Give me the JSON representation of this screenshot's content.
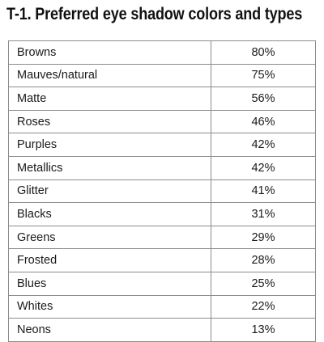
{
  "title": "T-1. Preferred eye shadow colors and types",
  "chart_data": {
    "type": "table",
    "title": "T-1. Preferred eye shadow colors and types",
    "rows": [
      {
        "label": "Browns",
        "value": "80%"
      },
      {
        "label": "Mauves/natural",
        "value": "75%"
      },
      {
        "label": "Matte",
        "value": "56%"
      },
      {
        "label": "Roses",
        "value": "46%"
      },
      {
        "label": "Purples",
        "value": "42%"
      },
      {
        "label": "Metallics",
        "value": "42%"
      },
      {
        "label": "Glitter",
        "value": "41%"
      },
      {
        "label": "Blacks",
        "value": "31%"
      },
      {
        "label": "Greens",
        "value": "29%"
      },
      {
        "label": "Frosted",
        "value": "28%"
      },
      {
        "label": "Blues",
        "value": "25%"
      },
      {
        "label": "Whites",
        "value": "22%"
      },
      {
        "label": "Neons",
        "value": "13%"
      }
    ]
  }
}
